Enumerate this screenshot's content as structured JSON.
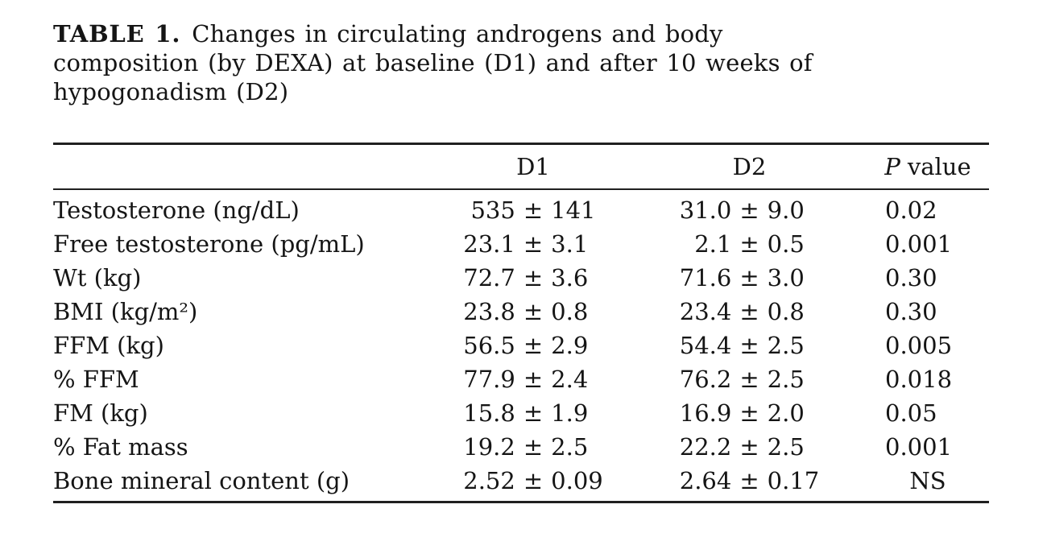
{
  "caption": {
    "label": "TABLE 1.",
    "line1": "Changes in circulating androgens and body",
    "line2": "composition (by DEXA) at baseline (D1) and after 10 weeks of",
    "line3": "hypogonadism (D2)"
  },
  "table": {
    "plus_minus": "±",
    "columns": {
      "label": "",
      "d1": "D1",
      "d2": "D2",
      "p_italic": "P",
      "p_rest": "value"
    },
    "rows": [
      {
        "label": "Testosterone (ng/dL)",
        "d1_mean": "535",
        "d1_sd": "141",
        "d2_mean": "31.0",
        "d2_sd": "9.0",
        "p": "0.02"
      },
      {
        "label": "Free testosterone (pg/mL)",
        "d1_mean": "23.1",
        "d1_sd": "3.1",
        "d2_mean": "2.1",
        "d2_sd": "0.5",
        "p": "0.001"
      },
      {
        "label": "Wt (kg)",
        "d1_mean": "72.7",
        "d1_sd": "3.6",
        "d2_mean": "71.6",
        "d2_sd": "3.0",
        "p": "0.30"
      },
      {
        "label": "BMI (kg/m²)",
        "d1_mean": "23.8",
        "d1_sd": "0.8",
        "d2_mean": "23.4",
        "d2_sd": "0.8",
        "p": "0.30"
      },
      {
        "label": "FFM (kg)",
        "d1_mean": "56.5",
        "d1_sd": "2.9",
        "d2_mean": "54.4",
        "d2_sd": "2.5",
        "p": "0.005"
      },
      {
        "label": "% FFM",
        "d1_mean": "77.9",
        "d1_sd": "2.4",
        "d2_mean": "76.2",
        "d2_sd": "2.5",
        "p": "0.018"
      },
      {
        "label": "FM (kg)",
        "d1_mean": "15.8",
        "d1_sd": "1.9",
        "d2_mean": "16.9",
        "d2_sd": "2.0",
        "p": "0.05"
      },
      {
        "label": "% Fat mass",
        "d1_mean": "19.2",
        "d1_sd": "2.5",
        "d2_mean": "22.2",
        "d2_sd": "2.5",
        "p": "0.001"
      },
      {
        "label": "Bone mineral content (g)",
        "d1_mean": "2.52",
        "d1_sd": "0.09",
        "d2_mean": "2.64",
        "d2_sd": "0.17",
        "p": "NS"
      }
    ],
    "colors": {
      "text": "#151515",
      "rule": "#202020",
      "background": "#ffffff"
    }
  }
}
